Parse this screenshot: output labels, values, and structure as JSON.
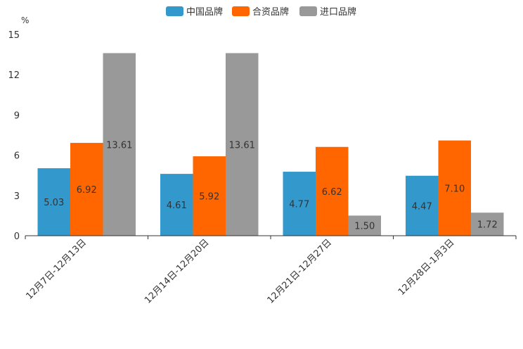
{
  "chart_data": {
    "type": "bar",
    "unit": "%",
    "categories": [
      "12月7日-12月13日",
      "12月14日-12月20日",
      "12月21日-12月27日",
      "12月28日-1月3日"
    ],
    "series": [
      {
        "name": "中国品牌",
        "color": "#3399cc",
        "values": [
          5.03,
          4.61,
          4.77,
          4.47
        ]
      },
      {
        "name": "合资品牌",
        "color": "#ff6600",
        "values": [
          6.92,
          5.92,
          6.62,
          7.1
        ]
      },
      {
        "name": "进口品牌",
        "color": "#999999",
        "values": [
          13.61,
          13.61,
          1.5,
          1.72
        ]
      }
    ],
    "ylim": [
      0,
      15
    ],
    "yticks": [
      0,
      3,
      6,
      9,
      12,
      15
    ],
    "legend_position": "top-center",
    "grid": false
  }
}
